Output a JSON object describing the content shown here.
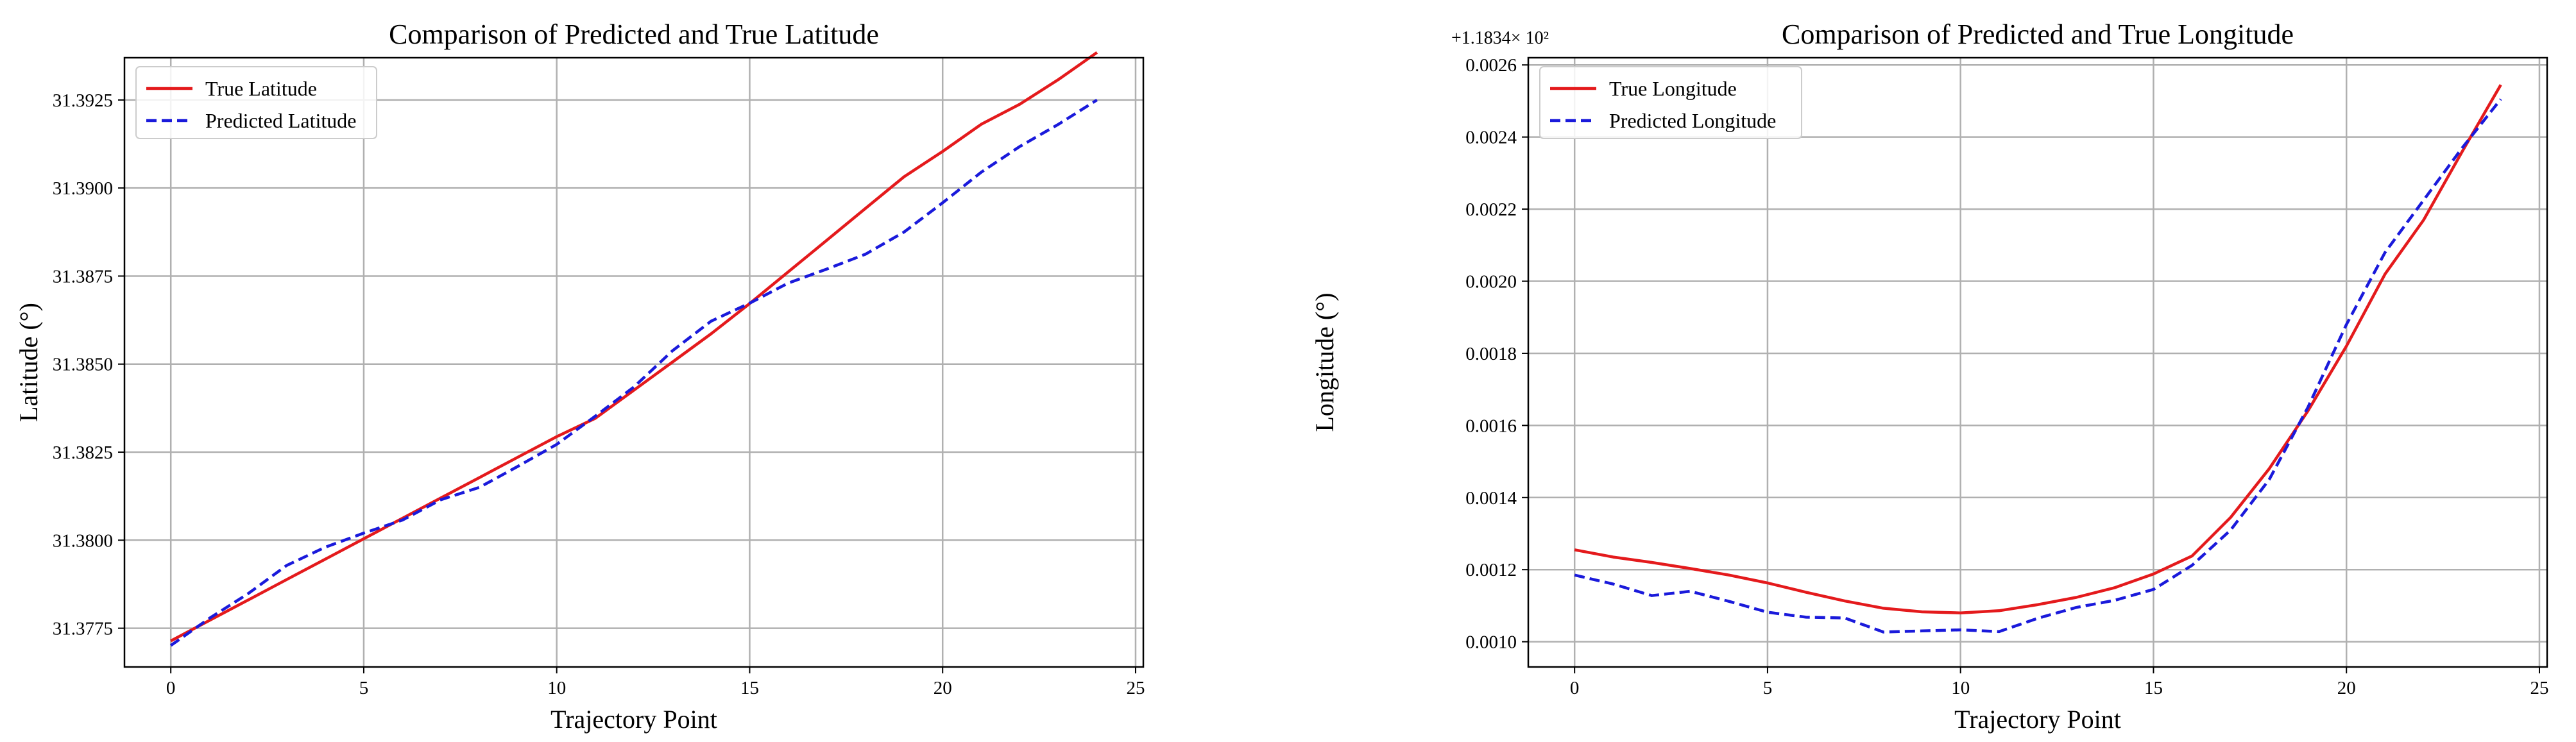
{
  "chart_data": [
    {
      "type": "line",
      "title": "Comparison of Predicted and True Latitude",
      "xlabel": "Trajectory Point",
      "ylabel": "Latitude (°)",
      "offset_text": "",
      "xlim": [
        -1.2,
        25.2
      ],
      "ylim": [
        31.3764,
        31.3937
      ],
      "xticks": [
        0,
        5,
        10,
        15,
        20,
        25
      ],
      "xtick_labels": [
        "0",
        "5",
        "10",
        "15",
        "20",
        "25"
      ],
      "yticks": [
        31.3775,
        31.38,
        31.3825,
        31.385,
        31.3875,
        31.39,
        31.3925
      ],
      "ytick_labels": [
        "31.3775",
        "31.3800",
        "31.3825",
        "31.3850",
        "31.3875",
        "31.3900",
        "31.3925"
      ],
      "grid": true,
      "legend_position": "top-left",
      "x": [
        0,
        1,
        2,
        3,
        4,
        5,
        6,
        7,
        8,
        9,
        10,
        11,
        12,
        13,
        14,
        15,
        16,
        17,
        18,
        19,
        20,
        21,
        22,
        23,
        24
      ],
      "series": [
        {
          "name": "True Latitude",
          "color": "#e41a1c",
          "style": "solid",
          "values": [
            31.37714,
            31.37772,
            31.3783,
            31.37888,
            31.37946,
            31.38004,
            31.38062,
            31.3812,
            31.38178,
            31.38236,
            31.38294,
            31.38346,
            31.38426,
            31.38506,
            31.38586,
            31.38672,
            31.38762,
            31.38852,
            31.38942,
            31.39032,
            31.39104,
            31.39181,
            31.39238,
            31.39308,
            31.39385
          ]
        },
        {
          "name": "Predicted Latitude",
          "color": "#1a1adb",
          "style": "dashed",
          "values": [
            31.37701,
            31.37778,
            31.37848,
            31.37928,
            31.3798,
            31.3802,
            31.38057,
            31.38115,
            31.3815,
            31.3821,
            31.38272,
            31.38352,
            31.38435,
            31.38538,
            31.38622,
            31.38673,
            31.3873,
            31.3877,
            31.38812,
            31.38875,
            31.38958,
            31.39045,
            31.39118,
            31.39181,
            31.3925
          ]
        }
      ]
    },
    {
      "type": "line",
      "title": "Comparison of Predicted and True Longitude",
      "xlabel": "Trajectory Point",
      "ylabel": "Longitude (°)",
      "offset_text": "+1.1834× 10²",
      "xlim": [
        -1.2,
        25.2
      ],
      "ylim": [
        0.00093,
        0.00262
      ],
      "xticks": [
        0,
        5,
        10,
        15,
        20,
        25
      ],
      "xtick_labels": [
        "0",
        "5",
        "10",
        "15",
        "20",
        "25"
      ],
      "yticks": [
        0.001,
        0.0012,
        0.0014,
        0.0016,
        0.0018,
        0.002,
        0.0022,
        0.0024,
        0.0026
      ],
      "ytick_labels": [
        "0.0010",
        "0.0012",
        "0.0014",
        "0.0016",
        "0.0018",
        "0.0020",
        "0.0022",
        "0.0024",
        "0.0026"
      ],
      "grid": true,
      "legend_position": "top-left",
      "x": [
        0,
        1,
        2,
        3,
        4,
        5,
        6,
        7,
        8,
        9,
        10,
        11,
        12,
        13,
        14,
        15,
        16,
        17,
        18,
        19,
        20,
        21,
        22,
        23,
        24
      ],
      "series": [
        {
          "name": "True Longitude",
          "color": "#e41a1c",
          "style": "solid",
          "values": [
            0.001255,
            0.001235,
            0.00122,
            0.001203,
            0.001185,
            0.001163,
            0.001137,
            0.001113,
            0.001093,
            0.001083,
            0.00108,
            0.001086,
            0.001103,
            0.001123,
            0.00115,
            0.001188,
            0.001238,
            0.001345,
            0.00148,
            0.00164,
            0.00182,
            0.00202,
            0.00217,
            0.00236,
            0.002545
          ]
        },
        {
          "name": "Predicted Longitude",
          "color": "#1a1adb",
          "style": "dashed",
          "values": [
            0.001185,
            0.00116,
            0.001128,
            0.00114,
            0.001112,
            0.001082,
            0.001068,
            0.001066,
            0.001027,
            0.00103,
            0.001033,
            0.001028,
            0.001065,
            0.001095,
            0.001115,
            0.001145,
            0.001212,
            0.00131,
            0.00145,
            0.00165,
            0.00188,
            0.00208,
            0.002225,
            0.00237,
            0.002505
          ]
        }
      ]
    }
  ]
}
